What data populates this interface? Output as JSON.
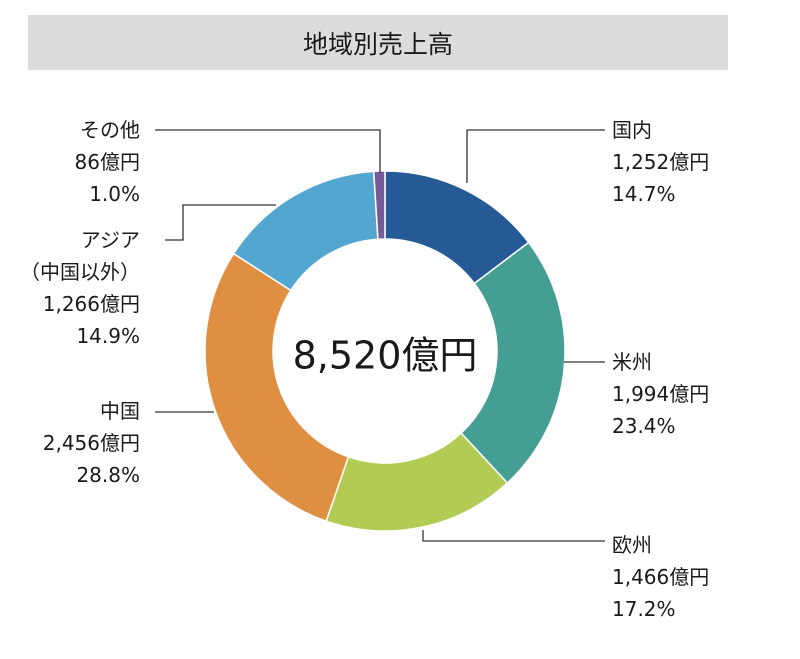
{
  "chart_data": {
    "type": "pie",
    "title": "地域別売上高",
    "center_label": "8,520億円",
    "unit": "億円",
    "slices": [
      {
        "name": "国内",
        "value": 1252,
        "value_label": "1,252億円",
        "percent": 14.7,
        "percent_label": "14.7%",
        "color": "#255a97"
      },
      {
        "name": "米州",
        "value": 1994,
        "value_label": "1,994億円",
        "percent": 23.4,
        "percent_label": "23.4%",
        "color": "#459e94"
      },
      {
        "name": "欧州",
        "value": 1466,
        "value_label": "1,466億円",
        "percent": 17.2,
        "percent_label": "17.2%",
        "color": "#b2cb52"
      },
      {
        "name": "中国",
        "value": 2456,
        "value_label": "2,456億円",
        "percent": 28.8,
        "percent_label": "28.8%",
        "color": "#de8f42"
      },
      {
        "name": "アジア",
        "name2": "（中国以外）",
        "value": 1266,
        "value_label": "1,266億円",
        "percent": 14.9,
        "percent_label": "14.9%",
        "color": "#52a6d0"
      },
      {
        "name": "その他",
        "value": 86,
        "value_label": "86億円",
        "percent": 1.0,
        "percent_label": "1.0%",
        "color": "#745a98"
      }
    ]
  }
}
